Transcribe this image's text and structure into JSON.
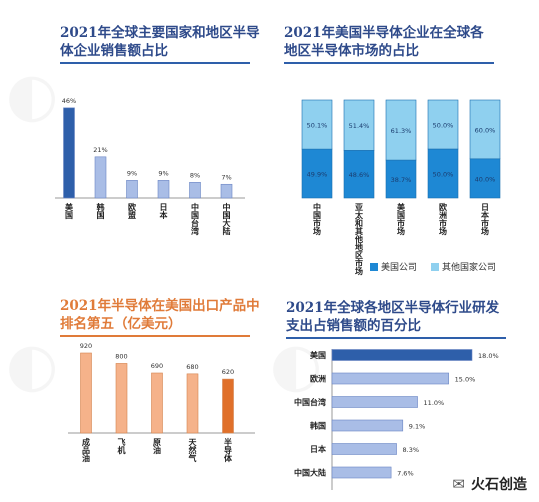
{
  "brand": {
    "name": "火石创造"
  },
  "colors": {
    "dark_blue": "#2e5faa",
    "light_blue": "#a9bde6",
    "cyan": "#1e88d4",
    "cyan_light": "#8fd0ef",
    "orange_light": "#f5b28a",
    "orange": "#e0702a"
  },
  "chart_data": [
    {
      "type": "bar",
      "title": "2021年全球主要国家和地区半导体企业销售额占比",
      "categories": [
        "美国",
        "韩国",
        "欧盟",
        "日本",
        "中国台湾",
        "中国大陆"
      ],
      "values": [
        46,
        21,
        9,
        9,
        8,
        7
      ],
      "value_labels": [
        "46%",
        "21%",
        "9%",
        "9%",
        "8%",
        "7%"
      ],
      "ylim": [
        0,
        50
      ]
    },
    {
      "type": "bar",
      "stacked": true,
      "title": "2021年美国半导体企业在全球各地区半导体市场的占比",
      "categories": [
        "中国市场",
        "亚太和其他地区市场",
        "美国市场",
        "欧洲市场",
        "日本市场"
      ],
      "series": [
        {
          "name": "美国公司",
          "values": [
            49.9,
            48.6,
            38.7,
            50.0,
            40.0
          ],
          "labels": [
            "49.9%",
            "48.6%",
            "38.7%",
            "50.0%",
            "40.0%"
          ]
        },
        {
          "name": "其他国家公司",
          "values": [
            50.1,
            51.4,
            61.3,
            50.0,
            60.0
          ],
          "labels": [
            "50.1%",
            "51.4%",
            "61.3%",
            "50.0%",
            "60.0%"
          ]
        }
      ],
      "ylim": [
        0,
        100
      ],
      "legend": "bottom"
    },
    {
      "type": "bar",
      "title": "2021年半导体在美国出口产品中排名第五（亿美元）",
      "categories": [
        "成品油",
        "飞机",
        "原油",
        "天然气",
        "半导体"
      ],
      "values": [
        920,
        800,
        690,
        680,
        620
      ],
      "value_labels": [
        "920",
        "800",
        "690",
        "680",
        "620"
      ]
    },
    {
      "type": "bar",
      "orientation": "horizontal",
      "title": "2021年全球各地区半导体行业研发支出占销售额的百分比",
      "categories": [
        "美国",
        "欧洲",
        "中国台湾",
        "韩国",
        "日本",
        "中国大陆"
      ],
      "values": [
        18.0,
        15.0,
        11.0,
        9.1,
        8.3,
        7.6
      ],
      "value_labels": [
        "18.0%",
        "15.0%",
        "11.0%",
        "9.1%",
        "8.3%",
        "7.6%"
      ],
      "xlim": [
        0,
        20
      ]
    }
  ]
}
